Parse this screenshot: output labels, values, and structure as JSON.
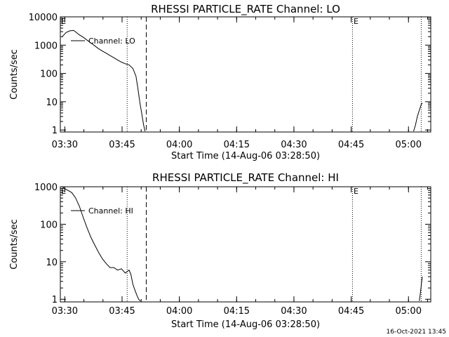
{
  "chart_data": [
    {
      "type": "line",
      "title": "RHESSI PARTICLE_RATE Channel: LO",
      "xlabel": "Start Time (14-Aug-06 03:28:50)",
      "ylabel": "Counts/sec",
      "yscale": "log",
      "xlim_minutes": [
        0,
        97
      ],
      "ylim": [
        0.85,
        10000
      ],
      "x_ticks": [
        "03:30",
        "03:45",
        "04:00",
        "04:15",
        "04:30",
        "04:45",
        "05:00"
      ],
      "y_ticks": [
        "1",
        "10",
        "100",
        "1000",
        "10000"
      ],
      "legend": "Channel: LO",
      "legend_position": "top-left",
      "vlines_dotted": [
        17.5,
        76.5,
        94.5
      ],
      "vlines_dashed": [
        22.5
      ],
      "markers": [
        {
          "label": "E",
          "x": 0.2
        },
        {
          "label": "E",
          "x": 76.8
        }
      ],
      "series": [
        {
          "name": "Channel: LO",
          "x": [
            0.5,
            1.5,
            2.5,
            3.5,
            4.5,
            5.0,
            6.0,
            7.0,
            8.0,
            9.0,
            10.0,
            11.0,
            12.0,
            13.0,
            14.0,
            15.0,
            16.0,
            17.0,
            18.0,
            19.0,
            19.8,
            20.3,
            20.8,
            21.3,
            21.8,
            22.2
          ],
          "y": [
            2000,
            2800,
            3200,
            3300,
            2600,
            2300,
            1900,
            1500,
            1200,
            950,
            750,
            620,
            520,
            430,
            360,
            300,
            250,
            220,
            200,
            150,
            80,
            30,
            10,
            4,
            1.5,
            0.9
          ]
        },
        {
          "name": "Channel: LO",
          "x": [
            92.5,
            93.0,
            93.5,
            94.0,
            94.5,
            94.8
          ],
          "y": [
            0.9,
            1.5,
            3,
            5,
            8,
            9
          ]
        }
      ]
    },
    {
      "type": "line",
      "title": "RHESSI PARTICLE_RATE Channel: HI",
      "xlabel": "Start Time (14-Aug-06 03:28:50)",
      "ylabel": "Counts/sec",
      "yscale": "log",
      "xlim_minutes": [
        0,
        97
      ],
      "ylim": [
        0.85,
        1000
      ],
      "x_ticks": [
        "03:30",
        "03:45",
        "04:00",
        "04:15",
        "04:30",
        "04:45",
        "05:00"
      ],
      "y_ticks": [
        "1",
        "10",
        "100",
        "1000"
      ],
      "legend": "Channel: HI",
      "legend_position": "top-left",
      "vlines_dotted": [
        17.5,
        76.5,
        94.5
      ],
      "vlines_dashed": [
        22.5
      ],
      "markers": [
        {
          "label": "E",
          "x": 0.2
        },
        {
          "label": "E",
          "x": 76.8
        }
      ],
      "series": [
        {
          "name": "Channel: HI",
          "x": [
            0.5,
            1.0,
            2.0,
            3.0,
            4.0,
            5.0,
            6.0,
            7.0,
            8.0,
            9.0,
            10.0,
            11.0,
            12.0,
            13.0,
            14.0,
            15.0,
            16.0,
            17.0,
            18.0,
            18.5,
            19.0,
            19.5,
            20.0,
            20.5,
            21.0
          ],
          "y": [
            1000,
            900,
            800,
            700,
            500,
            300,
            150,
            80,
            45,
            28,
            18,
            12,
            9,
            7,
            7,
            6,
            6.5,
            5,
            6,
            4.5,
            2.5,
            1.8,
            1.3,
            1.0,
            0.9
          ]
        },
        {
          "name": "Channel: HI",
          "x": [
            94.0,
            94.3,
            94.6,
            94.8
          ],
          "y": [
            0.9,
            1.5,
            2.8,
            4
          ]
        }
      ]
    }
  ],
  "footer": {
    "timestamp": "16-Oct-2021 13:45"
  }
}
